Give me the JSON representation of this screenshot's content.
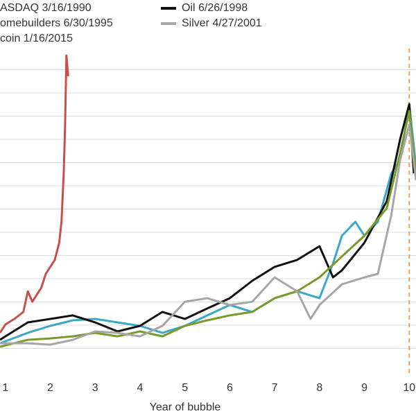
{
  "chart_data": {
    "type": "line",
    "x_label": "Year of bubble",
    "xlim": [
      0.88,
      10.15
    ],
    "xticks": [
      1,
      2,
      3,
      4,
      5,
      6,
      7,
      8,
      9,
      10
    ],
    "ylim": [
      0,
      14
    ],
    "yticks": [
      1,
      2,
      3,
      4,
      5,
      6,
      7,
      8,
      9,
      10,
      11,
      12,
      13
    ],
    "grid": true,
    "marker_x": 10,
    "marker_color": "#f0a050",
    "series": [
      {
        "name": "ASDAQ 3/16/1990",
        "color": "#3aa8c8",
        "x": [
          0.88,
          1.5,
          2,
          2.5,
          3,
          3.5,
          4,
          4.5,
          5,
          5.5,
          6,
          6.5,
          7,
          7.5,
          8,
          8.3,
          8.5,
          8.8,
          9,
          9.3,
          9.6,
          9.8,
          10,
          10.15
        ],
        "values": [
          1.22,
          1.67,
          1.97,
          2.21,
          2.27,
          2.12,
          1.97,
          1.67,
          1.97,
          2.42,
          2.87,
          2.57,
          3.16,
          3.46,
          3.16,
          4.66,
          5.85,
          6.45,
          5.85,
          6.45,
          8.54,
          9.13,
          11.52,
          8.84
        ]
      },
      {
        "name": "Oil 6/26/1998",
        "color": "#111111",
        "x": [
          0.88,
          1,
          1.5,
          2,
          2.5,
          3,
          3.5,
          4,
          4.5,
          5,
          5.5,
          6,
          6.5,
          7,
          7.5,
          8,
          8.3,
          8.5,
          9,
          9.5,
          9.8,
          10,
          10.1
        ],
        "values": [
          1.37,
          1.52,
          2.12,
          2.27,
          2.42,
          2.12,
          1.73,
          1.97,
          2.57,
          2.27,
          2.72,
          3.16,
          3.91,
          4.51,
          4.81,
          5.4,
          4.06,
          4.36,
          5.55,
          7.34,
          10.03,
          11.52,
          8.54
        ]
      },
      {
        "name": "omebuilders 6/30/1995",
        "color": "#7a9a2a",
        "x": [
          0.88,
          1.5,
          2,
          2.5,
          3,
          3.5,
          4,
          4.5,
          5,
          5.5,
          6,
          6.5,
          7,
          7.5,
          8,
          8.5,
          9,
          9.5,
          9.8,
          10,
          10.15
        ],
        "values": [
          1.07,
          1.37,
          1.43,
          1.52,
          1.67,
          1.52,
          1.73,
          1.52,
          1.97,
          2.21,
          2.42,
          2.57,
          3.16,
          3.46,
          4.06,
          4.96,
          5.85,
          7.04,
          9.43,
          11.22,
          8.54
        ]
      },
      {
        "name": "Silver 4/27/2001",
        "color": "#a6a6a6",
        "x": [
          0.88,
          1.5,
          2,
          2.5,
          3,
          3.5,
          4,
          4.5,
          5,
          5.5,
          6,
          6.5,
          7,
          7.5,
          7.8,
          8,
          8.5,
          9,
          9.3,
          9.6,
          9.8,
          10,
          10.15
        ],
        "values": [
          1.22,
          1.22,
          1.16,
          1.37,
          1.73,
          1.67,
          1.52,
          1.97,
          3.01,
          3.16,
          2.87,
          3.01,
          4.06,
          3.46,
          2.27,
          2.87,
          3.76,
          4.06,
          4.21,
          6.75,
          9.13,
          10.63,
          8.24
        ]
      },
      {
        "name": "coin 1/16/2015",
        "color": "#c8504a",
        "x": [
          0.88,
          1,
          1.2,
          1.4,
          1.5,
          1.6,
          1.8,
          1.9,
          2,
          2.1,
          2.2,
          2.25,
          2.3,
          2.33,
          2.36,
          2.4
        ],
        "values": [
          1.67,
          2.03,
          2.27,
          2.57,
          3.46,
          3.01,
          3.61,
          4.21,
          4.51,
          4.81,
          5.55,
          6.45,
          8.54,
          10.63,
          13.61,
          12.72
        ]
      }
    ]
  }
}
